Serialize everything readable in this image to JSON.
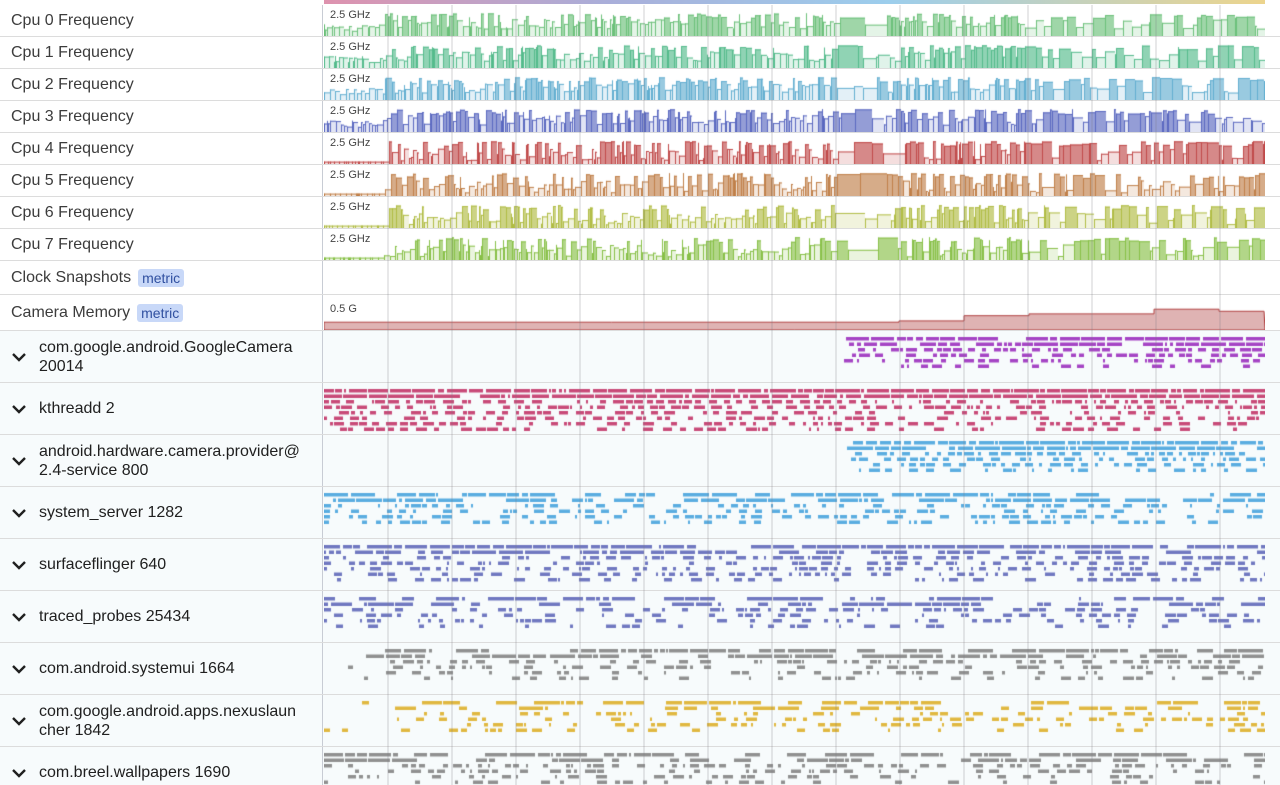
{
  "cpu_tracks": [
    {
      "label": "Cpu 0 Frequency",
      "scale": "2.5 GHz",
      "color": "#6cc07a"
    },
    {
      "label": "Cpu 1 Frequency",
      "scale": "2.5 GHz",
      "color": "#55bb8c"
    },
    {
      "label": "Cpu 2 Frequency",
      "scale": "2.5 GHz",
      "color": "#62aed0"
    },
    {
      "label": "Cpu 3 Frequency",
      "scale": "2.5 GHz",
      "color": "#5a68c0"
    },
    {
      "label": "Cpu 4 Frequency",
      "scale": "2.5 GHz",
      "color": "#c04a4a"
    },
    {
      "label": "Cpu 5 Frequency",
      "scale": "2.5 GHz",
      "color": "#c0804a"
    },
    {
      "label": "Cpu 6 Frequency",
      "scale": "2.5 GHz",
      "color": "#b0bc44"
    },
    {
      "label": "Cpu 7 Frequency",
      "scale": "2.5 GHz",
      "color": "#88c048"
    }
  ],
  "metric_tracks": [
    {
      "label": "Clock Snapshots",
      "badge": "metric"
    },
    {
      "label": "Camera Memory",
      "badge": "metric",
      "scale": "0.5 G",
      "color": "#b04040"
    }
  ],
  "processes": [
    {
      "line1": "com.google.android.GoogleCamera",
      "line2": "20014",
      "color": "#a544c4"
    },
    {
      "line1": "kthreadd 2",
      "line2": "",
      "color": "#c84a78"
    },
    {
      "line1": "android.hardware.camera.provider@",
      "line2": "2.4-service 800",
      "color": "#5aade0"
    },
    {
      "line1": "system_server 1282",
      "line2": "",
      "color": "#5aade0"
    },
    {
      "line1": "surfaceflinger 640",
      "line2": "",
      "color": "#7078c0"
    },
    {
      "line1": "traced_probes 25434",
      "line2": "",
      "color": "#7078c0"
    },
    {
      "line1": "com.android.systemui 1664",
      "line2": "",
      "color": "#909090"
    },
    {
      "line1": "com.google.android.apps.nexuslaun",
      "line2": "cher 1842",
      "color": "#e0b840"
    },
    {
      "line1": "com.breel.wallpapers 1690",
      "line2": "",
      "color": "#909090"
    }
  ]
}
